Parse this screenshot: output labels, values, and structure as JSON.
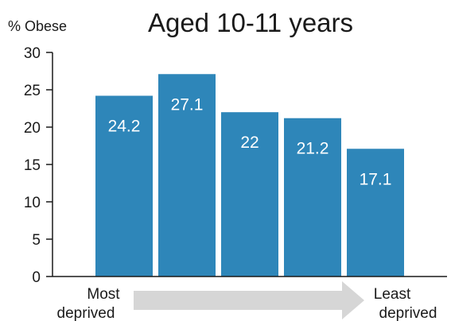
{
  "chart_data": {
    "type": "bar",
    "title": "Aged 10-11 years",
    "ylabel": "% Obese",
    "categories": [
      "",
      "",
      "",
      "",
      ""
    ],
    "values": [
      24.2,
      27.1,
      22,
      21.2,
      17.1
    ],
    "value_labels": [
      "24.2",
      "27.1",
      "22",
      "21.2",
      "17.1"
    ],
    "ylim": [
      0,
      30
    ],
    "yticks": [
      0,
      5,
      10,
      15,
      20,
      25,
      30
    ],
    "grid": false,
    "bar_color": "#2e86b9",
    "arrow": {
      "start_label": [
        "Most",
        "deprived"
      ],
      "end_label": [
        "Least",
        "deprived"
      ],
      "color": "#d6d6d6"
    }
  }
}
